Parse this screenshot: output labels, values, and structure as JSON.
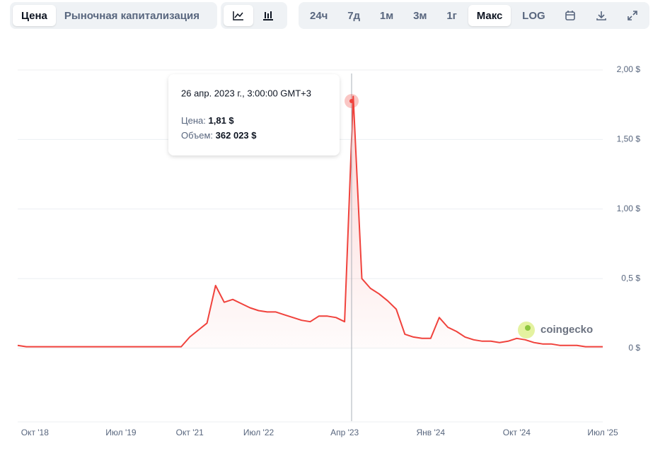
{
  "toolbar": {
    "tabs": [
      "Цена",
      "Рыночная капитализация"
    ],
    "ranges": [
      "24ч",
      "7д",
      "1м",
      "3м",
      "1г",
      "Макс",
      "LOG"
    ]
  },
  "chart_data": {
    "type": "line",
    "color": "#f0423c",
    "categories": [
      null,
      null,
      "Окт '18",
      null,
      null,
      null,
      null,
      null,
      null,
      null,
      null,
      null,
      "Июл '19",
      null,
      null,
      null,
      null,
      null,
      null,
      null,
      "Окт '21",
      null,
      null,
      null,
      null,
      null,
      null,
      null,
      "Июл '22",
      null,
      null,
      null,
      null,
      null,
      null,
      null,
      null,
      null,
      "Апр '23",
      null,
      null,
      null,
      null,
      null,
      null,
      null,
      null,
      null,
      "Янв '24",
      null,
      null,
      null,
      null,
      null,
      null,
      null,
      null,
      null,
      "Окт '24",
      null,
      null,
      null,
      null,
      null,
      null,
      null,
      null,
      null,
      "Июл '25"
    ],
    "values": [
      0.02,
      0.01,
      0.01,
      0.01,
      0.01,
      0.01,
      0.01,
      0.01,
      0.01,
      0.01,
      0.01,
      0.01,
      0.01,
      0.01,
      0.01,
      0.01,
      0.01,
      0.01,
      0.01,
      0.01,
      0.08,
      0.13,
      0.18,
      0.45,
      0.33,
      0.35,
      0.32,
      0.29,
      0.27,
      0.26,
      0.26,
      0.24,
      0.22,
      0.2,
      0.19,
      0.23,
      0.23,
      0.22,
      0.19,
      1.81,
      0.5,
      0.43,
      0.39,
      0.34,
      0.28,
      0.1,
      0.08,
      0.07,
      0.07,
      0.22,
      0.15,
      0.12,
      0.08,
      0.06,
      0.05,
      0.05,
      0.04,
      0.05,
      0.07,
      0.06,
      0.04,
      0.03,
      0.03,
      0.02,
      0.02,
      0.02,
      0.01,
      0.01,
      0.01
    ],
    "ylim": [
      -0.5,
      2
    ],
    "yticks": [
      {
        "value": 0,
        "label": "0 $"
      },
      {
        "value": 0.5,
        "label": "0,5 $"
      },
      {
        "value": 1,
        "label": "1,00 $"
      },
      {
        "value": 1.5,
        "label": "1,50 $"
      },
      {
        "value": 2,
        "label": "2,00 $"
      }
    ],
    "grid": true,
    "tooltip": {
      "date": "26 апр. 2023 г., 3:00:00 GMT+3",
      "price_label": "Цена:",
      "price": "1,81 $",
      "volume_label": "Объем:",
      "volume": "362 023 $"
    },
    "watermark": "coingecko"
  }
}
